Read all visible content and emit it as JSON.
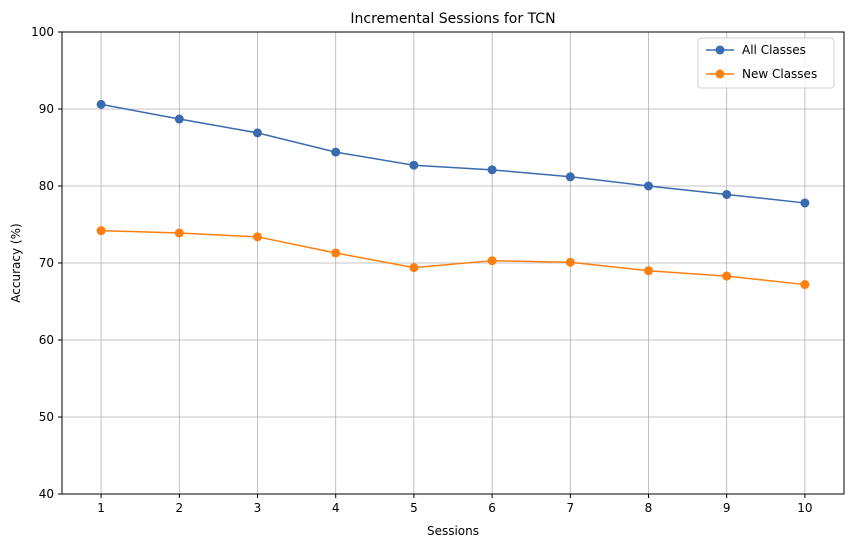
{
  "chart_data": {
    "type": "line",
    "title": "Incremental Sessions for TCN",
    "xlabel": "Sessions",
    "ylabel": "Accuracy (%)",
    "x": [
      1,
      2,
      3,
      4,
      5,
      6,
      7,
      8,
      9,
      10
    ],
    "xlim": [
      0.5,
      10.5
    ],
    "ylim": [
      40,
      100
    ],
    "yticks": [
      40,
      50,
      60,
      70,
      80,
      90,
      100
    ],
    "grid": true,
    "legend_position": "top-right",
    "series": [
      {
        "name": "All Classes",
        "color": "#3a6bb0",
        "values": [
          90.6,
          88.7,
          86.9,
          84.4,
          82.7,
          82.1,
          81.2,
          80.0,
          78.9,
          77.8
        ]
      },
      {
        "name": "New Classes",
        "color": "#ff7f0e",
        "values": [
          74.2,
          73.9,
          73.4,
          71.3,
          69.4,
          70.3,
          70.1,
          69.0,
          68.3,
          67.2
        ]
      }
    ]
  }
}
